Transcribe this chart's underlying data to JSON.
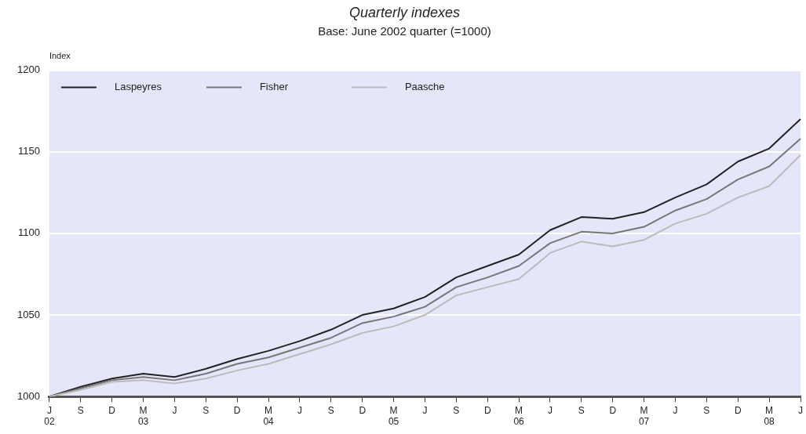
{
  "chart_data": {
    "type": "line",
    "title": "Quarterly indexes",
    "subtitle": "Base: June 2002 quarter (=1000)",
    "ylabel": "Index",
    "categories": [
      "J\n02",
      "S",
      "D",
      "M\n03",
      "J",
      "S",
      "D",
      "M\n04",
      "J",
      "S",
      "D",
      "M\n05",
      "J",
      "S",
      "D",
      "M\n06",
      "J",
      "S",
      "D",
      "M\n07",
      "J",
      "S",
      "D",
      "M\n08",
      "J"
    ],
    "series": [
      {
        "name": "Laspeyres",
        "color": "#222222",
        "values": [
          1000,
          1006,
          1011,
          1014,
          1012,
          1017,
          1023,
          1028,
          1034,
          1041,
          1050,
          1054,
          1061,
          1073,
          1080,
          1087,
          1102,
          1110,
          1109,
          1113,
          1122,
          1130,
          1144,
          1152,
          1170
        ]
      },
      {
        "name": "Fisher",
        "color": "#777777",
        "values": [
          1000,
          1005,
          1010,
          1012,
          1010,
          1014,
          1020,
          1024,
          1030,
          1036,
          1045,
          1049,
          1055,
          1067,
          1073,
          1080,
          1094,
          1101,
          1100,
          1104,
          1114,
          1121,
          1133,
          1141,
          1158
        ]
      },
      {
        "name": "Paasche",
        "color": "#bbbbbb",
        "values": [
          1000,
          1004,
          1009,
          1010,
          1008,
          1011,
          1016,
          1020,
          1026,
          1032,
          1039,
          1043,
          1050,
          1062,
          1067,
          1072,
          1088,
          1095,
          1092,
          1096,
          1106,
          1112,
          1122,
          1129,
          1148
        ]
      }
    ],
    "ylim": [
      1000,
      1200
    ],
    "yticks": [
      1000,
      1050,
      1100,
      1150,
      1200
    ],
    "grid": "y",
    "legend": "top left",
    "marker": "none",
    "line_style": "solid"
  }
}
